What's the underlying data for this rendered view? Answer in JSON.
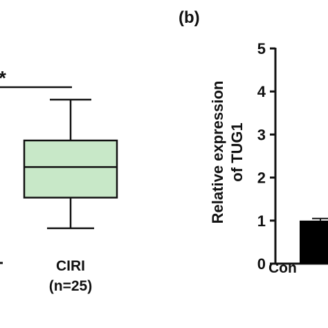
{
  "chart_data": [
    {
      "type": "box",
      "significance_marker": "*",
      "x_category": "CIRI",
      "x_subcategory": "(n=25)",
      "box": {
        "whisker_high": 4.0,
        "q3": 3.0,
        "median": 2.35,
        "q1": 1.6,
        "whisker_low": 0.85
      },
      "fill_color": "#c8e8c8",
      "stroke_color": "#111111"
    },
    {
      "type": "bar",
      "panel_label": "(b)",
      "ylabel_line1": "Relative expression",
      "ylabel_line2": "of TUG1",
      "ylim": [
        0,
        5
      ],
      "yticks": [
        "0",
        "1",
        "2",
        "3",
        "4",
        "5"
      ],
      "categories": [
        "Con"
      ],
      "values": [
        1.0
      ],
      "error": 0.05,
      "bar_color": "#000000"
    }
  ]
}
